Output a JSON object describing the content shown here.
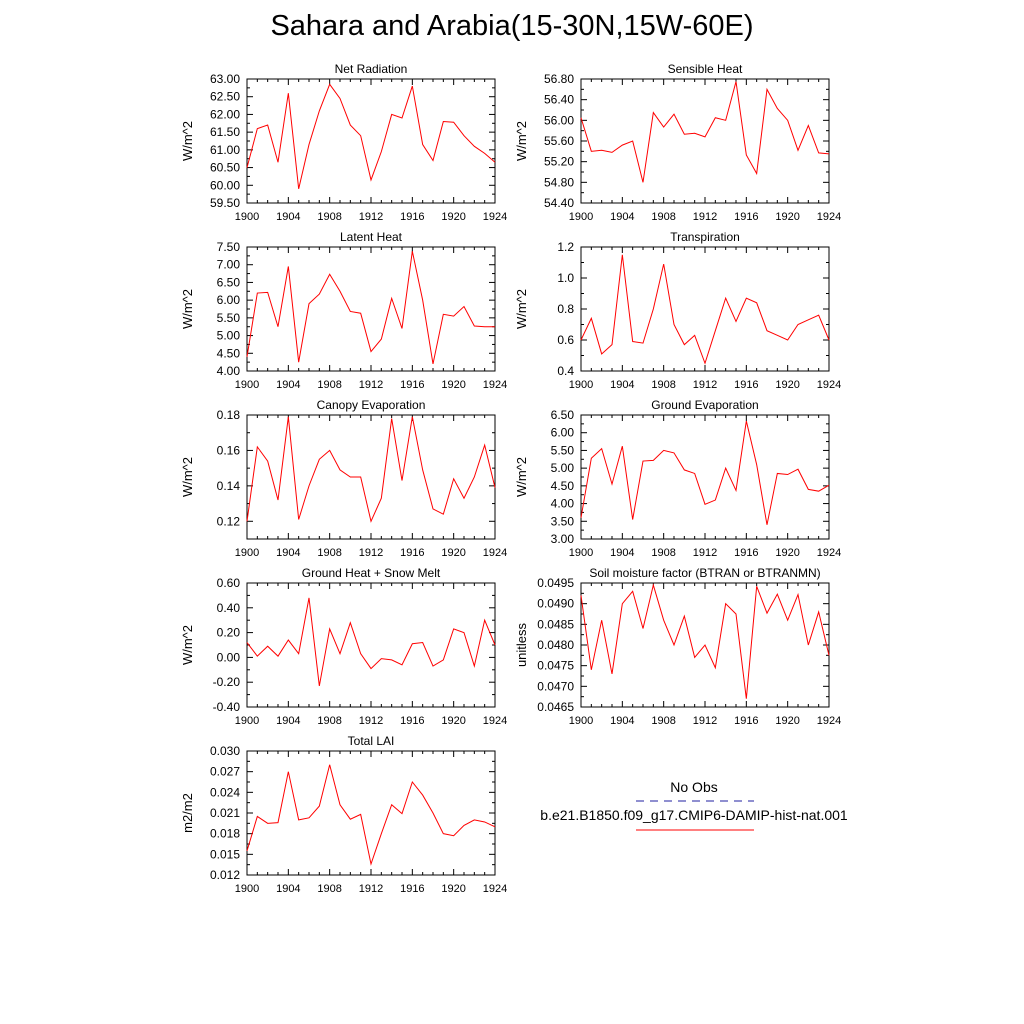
{
  "page": {
    "title": "Sahara and Arabia(15-30N,15W-60E)"
  },
  "legend": {
    "obs_label": "No Obs",
    "model_label": "b.e21.B1850.f09_g17.CMIP6-DAMIP-hist-nat.001",
    "obs_color": "#1f1fa0",
    "model_color": "#ff0000"
  },
  "chart_data": [
    {
      "type": "line",
      "title": "Net Radiation",
      "ylabel": "W/m^2",
      "xlim": [
        1900,
        1924
      ],
      "ylim": [
        59.5,
        63.0
      ],
      "xticks": [
        1900,
        1904,
        1908,
        1912,
        1916,
        1920,
        1924
      ],
      "yticks": [
        59.5,
        60.0,
        60.5,
        61.0,
        61.5,
        62.0,
        62.5,
        63.0
      ],
      "ytick_labels": [
        "59.50",
        "60.00",
        "60.50",
        "61.00",
        "61.50",
        "62.00",
        "62.50",
        "63.00"
      ],
      "x": [
        1900,
        1901,
        1902,
        1903,
        1904,
        1905,
        1906,
        1907,
        1908,
        1909,
        1910,
        1911,
        1912,
        1913,
        1914,
        1915,
        1916,
        1917,
        1918,
        1919,
        1920,
        1921,
        1922,
        1923,
        1924
      ],
      "series": [
        {
          "name": "b.e21.B1850.f09_g17.CMIP6-DAMIP-hist-nat.001",
          "color": "#ff0000",
          "values": [
            60.5,
            61.6,
            61.7,
            60.65,
            62.6,
            59.9,
            61.15,
            62.1,
            62.85,
            62.45,
            61.7,
            61.4,
            60.15,
            60.95,
            62.0,
            61.9,
            62.8,
            61.15,
            60.7,
            61.8,
            61.78,
            61.4,
            61.1,
            60.9,
            60.65
          ]
        }
      ]
    },
    {
      "type": "line",
      "title": "Sensible Heat",
      "ylabel": "W/m^2",
      "xlim": [
        1900,
        1924
      ],
      "ylim": [
        54.4,
        56.8
      ],
      "xticks": [
        1900,
        1904,
        1908,
        1912,
        1916,
        1920,
        1924
      ],
      "yticks": [
        54.4,
        54.8,
        55.2,
        55.6,
        56.0,
        56.4,
        56.8
      ],
      "ytick_labels": [
        "54.40",
        "54.80",
        "55.20",
        "55.60",
        "56.00",
        "56.40",
        "56.80"
      ],
      "x": [
        1900,
        1901,
        1902,
        1903,
        1904,
        1905,
        1906,
        1907,
        1908,
        1909,
        1910,
        1911,
        1912,
        1913,
        1914,
        1915,
        1916,
        1917,
        1918,
        1919,
        1920,
        1921,
        1922,
        1923,
        1924
      ],
      "series": [
        {
          "name": "b.e21.B1850.f09_g17.CMIP6-DAMIP-hist-nat.001",
          "color": "#ff0000",
          "values": [
            56.05,
            55.4,
            55.42,
            55.38,
            55.52,
            55.6,
            54.8,
            56.15,
            55.87,
            56.12,
            55.73,
            55.75,
            55.68,
            56.05,
            56.0,
            56.75,
            55.33,
            54.97,
            56.6,
            56.23,
            56.0,
            55.42,
            55.9,
            55.37,
            55.35
          ]
        }
      ]
    },
    {
      "type": "line",
      "title": "Latent Heat",
      "ylabel": "W/m^2",
      "xlim": [
        1900,
        1924
      ],
      "ylim": [
        4.0,
        7.5
      ],
      "xticks": [
        1900,
        1904,
        1908,
        1912,
        1916,
        1920,
        1924
      ],
      "yticks": [
        4.0,
        4.5,
        5.0,
        5.5,
        6.0,
        6.5,
        7.0,
        7.5
      ],
      "ytick_labels": [
        "4.00",
        "4.50",
        "5.00",
        "5.50",
        "6.00",
        "6.50",
        "7.00",
        "7.50"
      ],
      "x": [
        1900,
        1901,
        1902,
        1903,
        1904,
        1905,
        1906,
        1907,
        1908,
        1909,
        1910,
        1911,
        1912,
        1913,
        1914,
        1915,
        1916,
        1917,
        1918,
        1919,
        1920,
        1921,
        1922,
        1923,
        1924
      ],
      "series": [
        {
          "name": "b.e21.B1850.f09_g17.CMIP6-DAMIP-hist-nat.001",
          "color": "#ff0000",
          "values": [
            4.4,
            6.2,
            6.22,
            5.25,
            6.95,
            4.25,
            5.9,
            6.17,
            6.73,
            6.25,
            5.68,
            5.63,
            4.55,
            4.9,
            6.05,
            5.2,
            7.38,
            6.0,
            4.2,
            5.6,
            5.55,
            5.82,
            5.27,
            5.25,
            5.25
          ]
        }
      ]
    },
    {
      "type": "line",
      "title": "Transpiration",
      "ylabel": "W/m^2",
      "xlim": [
        1900,
        1924
      ],
      "ylim": [
        0.4,
        1.2
      ],
      "xticks": [
        1900,
        1904,
        1908,
        1912,
        1916,
        1920,
        1924
      ],
      "yticks": [
        0.4,
        0.6,
        0.8,
        1.0,
        1.2
      ],
      "ytick_labels": [
        "0.4",
        "0.6",
        "0.8",
        "1.0",
        "1.2"
      ],
      "x": [
        1900,
        1901,
        1902,
        1903,
        1904,
        1905,
        1906,
        1907,
        1908,
        1909,
        1910,
        1911,
        1912,
        1913,
        1914,
        1915,
        1916,
        1917,
        1918,
        1919,
        1920,
        1921,
        1922,
        1923,
        1924
      ],
      "series": [
        {
          "name": "b.e21.B1850.f09_g17.CMIP6-DAMIP-hist-nat.001",
          "color": "#ff0000",
          "values": [
            0.6,
            0.74,
            0.51,
            0.57,
            1.15,
            0.59,
            0.58,
            0.8,
            1.09,
            0.7,
            0.57,
            0.63,
            0.45,
            0.66,
            0.87,
            0.72,
            0.87,
            0.84,
            0.66,
            0.63,
            0.6,
            0.7,
            0.73,
            0.76,
            0.6
          ]
        }
      ]
    },
    {
      "type": "line",
      "title": "Canopy Evaporation",
      "ylabel": "W/m^2",
      "xlim": [
        1900,
        1924
      ],
      "ylim": [
        0.11,
        0.18
      ],
      "xticks": [
        1900,
        1904,
        1908,
        1912,
        1916,
        1920,
        1924
      ],
      "yticks": [
        0.12,
        0.14,
        0.16,
        0.18
      ],
      "ytick_labels": [
        "0.12",
        "0.14",
        "0.16",
        "0.18"
      ],
      "x": [
        1900,
        1901,
        1902,
        1903,
        1904,
        1905,
        1906,
        1907,
        1908,
        1909,
        1910,
        1911,
        1912,
        1913,
        1914,
        1915,
        1916,
        1917,
        1918,
        1919,
        1920,
        1921,
        1922,
        1923,
        1924
      ],
      "series": [
        {
          "name": "b.e21.B1850.f09_g17.CMIP6-DAMIP-hist-nat.001",
          "color": "#ff0000",
          "values": [
            0.12,
            0.162,
            0.154,
            0.132,
            0.179,
            0.121,
            0.14,
            0.155,
            0.16,
            0.149,
            0.145,
            0.145,
            0.12,
            0.133,
            0.178,
            0.143,
            0.179,
            0.149,
            0.127,
            0.124,
            0.144,
            0.133,
            0.145,
            0.163,
            0.139
          ]
        }
      ]
    },
    {
      "type": "line",
      "title": "Ground Evaporation",
      "ylabel": "W/m^2",
      "xlim": [
        1900,
        1924
      ],
      "ylim": [
        3.0,
        6.5
      ],
      "xticks": [
        1900,
        1904,
        1908,
        1912,
        1916,
        1920,
        1924
      ],
      "yticks": [
        3.0,
        3.5,
        4.0,
        4.5,
        5.0,
        5.5,
        6.0,
        6.5
      ],
      "ytick_labels": [
        "3.00",
        "3.50",
        "4.00",
        "4.50",
        "5.00",
        "5.50",
        "6.00",
        "6.50"
      ],
      "x": [
        1900,
        1901,
        1902,
        1903,
        1904,
        1905,
        1906,
        1907,
        1908,
        1909,
        1910,
        1911,
        1912,
        1913,
        1914,
        1915,
        1916,
        1917,
        1918,
        1919,
        1920,
        1921,
        1922,
        1923,
        1924
      ],
      "series": [
        {
          "name": "b.e21.B1850.f09_g17.CMIP6-DAMIP-hist-nat.001",
          "color": "#ff0000",
          "values": [
            3.6,
            5.28,
            5.55,
            4.55,
            5.62,
            3.55,
            5.2,
            5.22,
            5.5,
            5.43,
            4.95,
            4.85,
            3.98,
            4.1,
            5.0,
            4.37,
            6.33,
            5.1,
            3.4,
            4.85,
            4.82,
            4.97,
            4.4,
            4.35,
            4.52
          ]
        }
      ]
    },
    {
      "type": "line",
      "title": "Ground Heat + Snow Melt",
      "ylabel": "W/m^2",
      "xlim": [
        1900,
        1924
      ],
      "ylim": [
        -0.4,
        0.6
      ],
      "xticks": [
        1900,
        1904,
        1908,
        1912,
        1916,
        1920,
        1924
      ],
      "yticks": [
        -0.4,
        -0.2,
        0.0,
        0.2,
        0.4,
        0.6
      ],
      "ytick_labels": [
        "-0.40",
        "-0.20",
        "0.00",
        "0.20",
        "0.40",
        "0.60"
      ],
      "x": [
        1900,
        1901,
        1902,
        1903,
        1904,
        1905,
        1906,
        1907,
        1908,
        1909,
        1910,
        1911,
        1912,
        1913,
        1914,
        1915,
        1916,
        1917,
        1918,
        1919,
        1920,
        1921,
        1922,
        1923,
        1924
      ],
      "series": [
        {
          "name": "b.e21.B1850.f09_g17.CMIP6-DAMIP-hist-nat.001",
          "color": "#ff0000",
          "values": [
            0.12,
            0.01,
            0.09,
            0.01,
            0.14,
            0.03,
            0.48,
            -0.23,
            0.23,
            0.03,
            0.28,
            0.03,
            -0.09,
            -0.01,
            -0.02,
            -0.06,
            0.11,
            0.12,
            -0.07,
            -0.02,
            0.23,
            0.2,
            -0.07,
            0.3,
            0.1
          ]
        }
      ]
    },
    {
      "type": "line",
      "title": "Soil moisture factor (BTRAN or BTRANMN)",
      "ylabel": "unitless",
      "xlim": [
        1900,
        1924
      ],
      "ylim": [
        0.0465,
        0.0495
      ],
      "xticks": [
        1900,
        1904,
        1908,
        1912,
        1916,
        1920,
        1924
      ],
      "yticks": [
        0.0465,
        0.047,
        0.0475,
        0.048,
        0.0485,
        0.049,
        0.0495
      ],
      "ytick_labels": [
        "0.0465",
        "0.0470",
        "0.0475",
        "0.0480",
        "0.0485",
        "0.0490",
        "0.0495"
      ],
      "x": [
        1900,
        1901,
        1902,
        1903,
        1904,
        1905,
        1906,
        1907,
        1908,
        1909,
        1910,
        1911,
        1912,
        1913,
        1914,
        1915,
        1916,
        1917,
        1918,
        1919,
        1920,
        1921,
        1922,
        1923,
        1924
      ],
      "series": [
        {
          "name": "b.e21.B1850.f09_g17.CMIP6-DAMIP-hist-nat.001",
          "color": "#ff0000",
          "values": [
            0.0492,
            0.0474,
            0.0486,
            0.0473,
            0.049,
            0.0493,
            0.0484,
            0.04945,
            0.0486,
            0.048,
            0.0487,
            0.0477,
            0.048,
            0.04745,
            0.049,
            0.04875,
            0.0467,
            0.04942,
            0.04877,
            0.04923,
            0.0486,
            0.04922,
            0.048,
            0.0488,
            0.04775
          ]
        }
      ]
    },
    {
      "type": "line",
      "title": "Total LAI",
      "ylabel": "m2/m2",
      "xlim": [
        1900,
        1924
      ],
      "ylim": [
        0.012,
        0.03
      ],
      "xticks": [
        1900,
        1904,
        1908,
        1912,
        1916,
        1920,
        1924
      ],
      "yticks": [
        0.012,
        0.015,
        0.018,
        0.021,
        0.024,
        0.027,
        0.03
      ],
      "ytick_labels": [
        "0.012",
        "0.015",
        "0.018",
        "0.021",
        "0.024",
        "0.027",
        "0.030"
      ],
      "x": [
        1900,
        1901,
        1902,
        1903,
        1904,
        1905,
        1906,
        1907,
        1908,
        1909,
        1910,
        1911,
        1912,
        1913,
        1914,
        1915,
        1916,
        1917,
        1918,
        1919,
        1920,
        1921,
        1922,
        1923,
        1924
      ],
      "series": [
        {
          "name": "b.e21.B1850.f09_g17.CMIP6-DAMIP-hist-nat.001",
          "color": "#ff0000",
          "values": [
            0.0155,
            0.0205,
            0.0195,
            0.0196,
            0.027,
            0.02,
            0.0203,
            0.022,
            0.028,
            0.0222,
            0.0201,
            0.0208,
            0.0136,
            0.018,
            0.0222,
            0.0209,
            0.0255,
            0.0236,
            0.021,
            0.018,
            0.0177,
            0.0192,
            0.02,
            0.0197,
            0.019
          ]
        }
      ]
    }
  ]
}
